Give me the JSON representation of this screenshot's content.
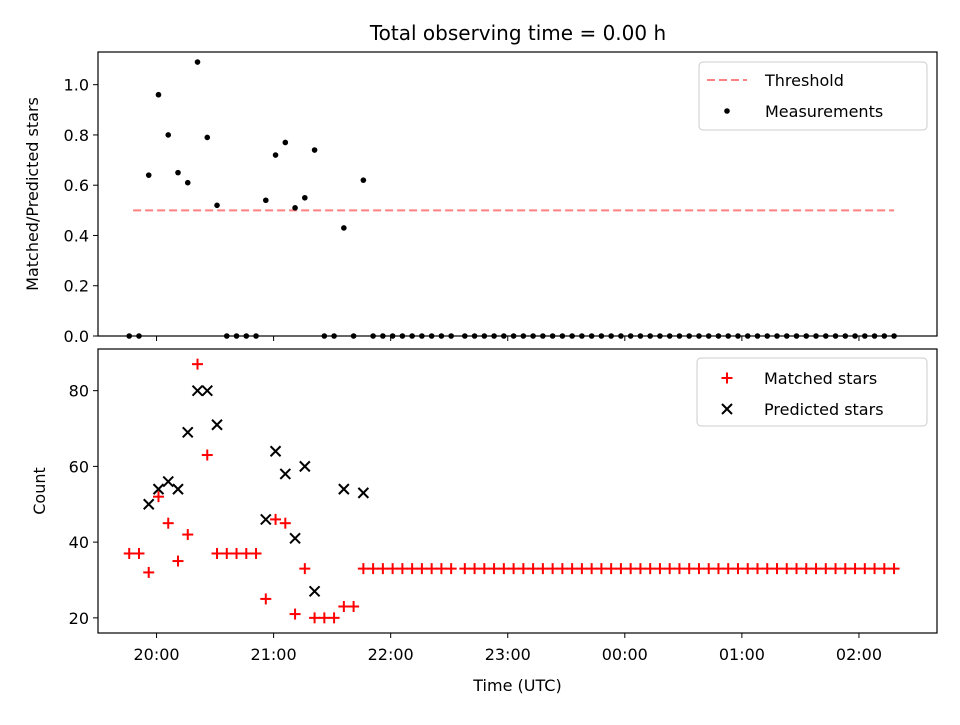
{
  "title": "Total observing time = 0.00 h",
  "colors": {
    "threshold": "#ff8080",
    "measurement": "#000000",
    "matched": "#ff0000",
    "predicted": "#000000",
    "axes": "#000000",
    "legend_border": "#cccccc"
  },
  "chart_data": [
    {
      "type": "scatter",
      "panel": "top",
      "ylabel": "Matched/Predicted stars",
      "ylim": [
        0,
        1.13
      ],
      "yticks": [
        0.0,
        0.2,
        0.4,
        0.6,
        0.8,
        1.0
      ],
      "ytick_labels": [
        "0.0",
        "0.2",
        "0.4",
        "0.6",
        "0.8",
        "1.0"
      ],
      "grid": false,
      "legend": {
        "placement": "top-right",
        "entries": [
          {
            "label": "Threshold",
            "kind": "dash",
            "color_key": "threshold"
          },
          {
            "label": "Measurements",
            "kind": "dot",
            "color_key": "measurement"
          }
        ]
      },
      "threshold": {
        "y": 0.5,
        "x_start": "19:48",
        "x_end": "02:18"
      },
      "series": [
        {
          "name": "Measurements",
          "points": [
            [
              "19:46",
              0.0
            ],
            [
              "19:51",
              0.0
            ],
            [
              "19:56",
              0.64
            ],
            [
              "20:01",
              0.96
            ],
            [
              "20:06",
              0.8
            ],
            [
              "20:11",
              0.65
            ],
            [
              "20:16",
              0.61
            ],
            [
              "20:21",
              1.09
            ],
            [
              "20:26",
              0.79
            ],
            [
              "20:31",
              0.52
            ],
            [
              "20:36",
              0.0
            ],
            [
              "20:41",
              0.0
            ],
            [
              "20:46",
              0.0
            ],
            [
              "20:51",
              0.0
            ],
            [
              "20:56",
              0.54
            ],
            [
              "21:01",
              0.72
            ],
            [
              "21:06",
              0.77
            ],
            [
              "21:11",
              0.51
            ],
            [
              "21:16",
              0.55
            ],
            [
              "21:21",
              0.74
            ],
            [
              "21:26",
              0.0
            ],
            [
              "21:31",
              0.0
            ],
            [
              "21:36",
              0.43
            ],
            [
              "21:41",
              0.0
            ],
            [
              "21:46",
              0.62
            ],
            [
              "21:51",
              0.0
            ],
            [
              "21:56",
              0.0
            ],
            [
              "22:01",
              0.0
            ],
            [
              "22:06",
              0.0
            ],
            [
              "22:11",
              0.0
            ],
            [
              "22:16",
              0.0
            ],
            [
              "22:21",
              0.0
            ],
            [
              "22:26",
              0.0
            ],
            [
              "22:31",
              0.0
            ],
            [
              "22:38",
              0.0
            ],
            [
              "22:43",
              0.0
            ],
            [
              "22:48",
              0.0
            ],
            [
              "22:53",
              0.0
            ],
            [
              "22:58",
              0.0
            ],
            [
              "23:03",
              0.0
            ],
            [
              "23:08",
              0.0
            ],
            [
              "23:13",
              0.0
            ],
            [
              "23:18",
              0.0
            ],
            [
              "23:23",
              0.0
            ],
            [
              "23:28",
              0.0
            ],
            [
              "23:33",
              0.0
            ],
            [
              "23:38",
              0.0
            ],
            [
              "23:43",
              0.0
            ],
            [
              "23:48",
              0.0
            ],
            [
              "23:53",
              0.0
            ],
            [
              "23:58",
              0.0
            ],
            [
              "00:03",
              0.0
            ],
            [
              "00:08",
              0.0
            ],
            [
              "00:13",
              0.0
            ],
            [
              "00:18",
              0.0
            ],
            [
              "00:23",
              0.0
            ],
            [
              "00:28",
              0.0
            ],
            [
              "00:33",
              0.0
            ],
            [
              "00:38",
              0.0
            ],
            [
              "00:43",
              0.0
            ],
            [
              "00:48",
              0.0
            ],
            [
              "00:53",
              0.0
            ],
            [
              "00:58",
              0.0
            ],
            [
              "01:03",
              0.0
            ],
            [
              "01:08",
              0.0
            ],
            [
              "01:13",
              0.0
            ],
            [
              "01:18",
              0.0
            ],
            [
              "01:23",
              0.0
            ],
            [
              "01:28",
              0.0
            ],
            [
              "01:33",
              0.0
            ],
            [
              "01:38",
              0.0
            ],
            [
              "01:43",
              0.0
            ],
            [
              "01:48",
              0.0
            ],
            [
              "01:53",
              0.0
            ],
            [
              "01:58",
              0.0
            ],
            [
              "02:03",
              0.0
            ],
            [
              "02:08",
              0.0
            ],
            [
              "02:13",
              0.0
            ],
            [
              "02:18",
              0.0
            ]
          ]
        }
      ]
    },
    {
      "type": "scatter",
      "panel": "bottom",
      "xlabel": "Time (UTC)",
      "ylabel": "Count",
      "ylim": [
        16,
        91
      ],
      "yticks": [
        20,
        40,
        60,
        80
      ],
      "ytick_labels": [
        "20",
        "40",
        "60",
        "80"
      ],
      "grid": false,
      "legend": {
        "placement": "top-right",
        "entries": [
          {
            "label": "Matched stars",
            "kind": "plus",
            "color_key": "matched"
          },
          {
            "label": "Predicted stars",
            "kind": "cross",
            "color_key": "predicted"
          }
        ]
      },
      "series": [
        {
          "name": "Matched stars",
          "marker": "plus",
          "points": [
            [
              "19:46",
              37
            ],
            [
              "19:51",
              37
            ],
            [
              "19:56",
              32
            ],
            [
              "20:01",
              52
            ],
            [
              "20:06",
              45
            ],
            [
              "20:11",
              35
            ],
            [
              "20:16",
              42
            ],
            [
              "20:21",
              87
            ],
            [
              "20:26",
              63
            ],
            [
              "20:31",
              37
            ],
            [
              "20:36",
              37
            ],
            [
              "20:41",
              37
            ],
            [
              "20:46",
              37
            ],
            [
              "20:51",
              37
            ],
            [
              "20:56",
              25
            ],
            [
              "21:01",
              46
            ],
            [
              "21:06",
              45
            ],
            [
              "21:11",
              21
            ],
            [
              "21:16",
              33
            ],
            [
              "21:21",
              20
            ],
            [
              "21:26",
              20
            ],
            [
              "21:31",
              20
            ],
            [
              "21:36",
              23
            ],
            [
              "21:41",
              23
            ],
            [
              "21:46",
              33
            ],
            [
              "21:51",
              33
            ],
            [
              "21:56",
              33
            ],
            [
              "22:01",
              33
            ],
            [
              "22:06",
              33
            ],
            [
              "22:11",
              33
            ],
            [
              "22:16",
              33
            ],
            [
              "22:21",
              33
            ],
            [
              "22:26",
              33
            ],
            [
              "22:31",
              33
            ],
            [
              "22:38",
              33
            ],
            [
              "22:43",
              33
            ],
            [
              "22:48",
              33
            ],
            [
              "22:53",
              33
            ],
            [
              "22:58",
              33
            ],
            [
              "23:03",
              33
            ],
            [
              "23:08",
              33
            ],
            [
              "23:13",
              33
            ],
            [
              "23:18",
              33
            ],
            [
              "23:23",
              33
            ],
            [
              "23:28",
              33
            ],
            [
              "23:33",
              33
            ],
            [
              "23:38",
              33
            ],
            [
              "23:43",
              33
            ],
            [
              "23:48",
              33
            ],
            [
              "23:53",
              33
            ],
            [
              "23:58",
              33
            ],
            [
              "00:03",
              33
            ],
            [
              "00:08",
              33
            ],
            [
              "00:13",
              33
            ],
            [
              "00:18",
              33
            ],
            [
              "00:23",
              33
            ],
            [
              "00:28",
              33
            ],
            [
              "00:33",
              33
            ],
            [
              "00:38",
              33
            ],
            [
              "00:43",
              33
            ],
            [
              "00:48",
              33
            ],
            [
              "00:53",
              33
            ],
            [
              "00:58",
              33
            ],
            [
              "01:03",
              33
            ],
            [
              "01:08",
              33
            ],
            [
              "01:13",
              33
            ],
            [
              "01:18",
              33
            ],
            [
              "01:23",
              33
            ],
            [
              "01:28",
              33
            ],
            [
              "01:33",
              33
            ],
            [
              "01:38",
              33
            ],
            [
              "01:43",
              33
            ],
            [
              "01:48",
              33
            ],
            [
              "01:53",
              33
            ],
            [
              "01:58",
              33
            ],
            [
              "02:03",
              33
            ],
            [
              "02:08",
              33
            ],
            [
              "02:13",
              33
            ],
            [
              "02:18",
              33
            ]
          ]
        },
        {
          "name": "Predicted stars",
          "marker": "cross",
          "points": [
            [
              "19:56",
              50
            ],
            [
              "20:01",
              54
            ],
            [
              "20:06",
              56
            ],
            [
              "20:11",
              54
            ],
            [
              "20:16",
              69
            ],
            [
              "20:21",
              80
            ],
            [
              "20:26",
              80
            ],
            [
              "20:31",
              71
            ],
            [
              "20:56",
              46
            ],
            [
              "21:01",
              64
            ],
            [
              "21:06",
              58
            ],
            [
              "21:11",
              41
            ],
            [
              "21:16",
              60
            ],
            [
              "21:21",
              27
            ],
            [
              "21:36",
              54
            ],
            [
              "21:46",
              53
            ]
          ]
        }
      ]
    }
  ],
  "x_axis": {
    "label": "Time (UTC)",
    "start": "19:30",
    "end": "02:40",
    "ticks": [
      "20:00",
      "21:00",
      "22:00",
      "23:00",
      "00:00",
      "01:00",
      "02:00"
    ]
  }
}
